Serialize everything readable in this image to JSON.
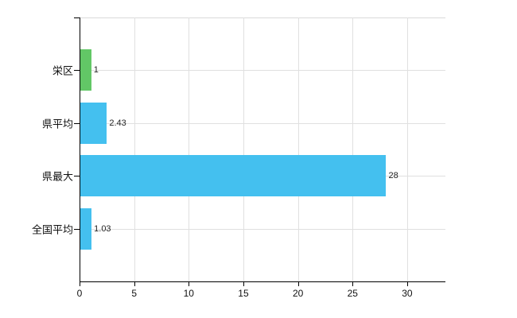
{
  "chart_data": {
    "type": "bar",
    "orientation": "horizontal",
    "title": "",
    "xlabel": "",
    "ylabel": "",
    "categories": [
      "栄区",
      "県平均",
      "県最大",
      "全国平均"
    ],
    "values": [
      1,
      2.43,
      28,
      1.03
    ],
    "value_labels": [
      "1",
      "2.43",
      "28",
      "1.03"
    ],
    "bar_colors": [
      "#62c766",
      "#44c0ef",
      "#44c0ef",
      "#44c0ef"
    ],
    "x_ticks": [
      0,
      5,
      10,
      15,
      20,
      25,
      30
    ],
    "x_tick_labels": [
      "0",
      "5",
      "10",
      "15",
      "20",
      "25",
      "30"
    ],
    "xlim": [
      0,
      33.5
    ],
    "grid": true,
    "legend": "none"
  },
  "colors": {
    "axis": "#000000",
    "gridline": "#e0e0e0",
    "plot_top_border": "#d9d9d9",
    "background": "#ffffff",
    "green_bar": "#62c766",
    "blue_bar": "#44c0ef"
  }
}
